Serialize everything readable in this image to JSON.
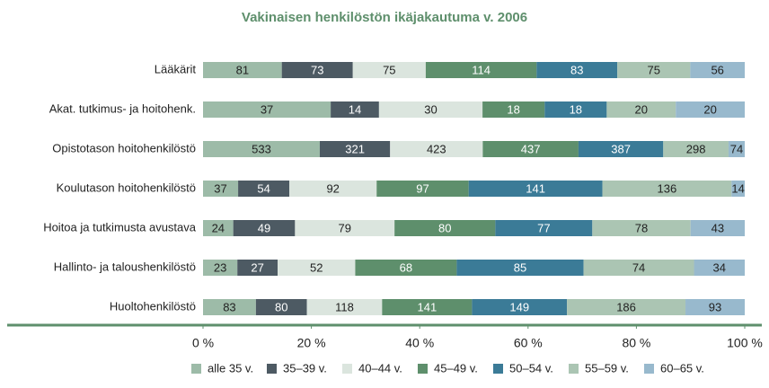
{
  "chart_data": {
    "type": "bar",
    "orientation": "horizontal",
    "stacked": "percent",
    "title": "Vakinaisen henkilöstön ikäjakautuma v. 2006",
    "categories": [
      "Lääkärit",
      "Akat. tutkimus- ja hoitohenk.",
      "Opistotason hoitohenkilöstö",
      "Koulutason hoitohenkilöstö",
      "Hoitoa ja tutkimusta avustava",
      "Hallinto- ja taloushenkilöstö",
      "Huoltohenkilöstö"
    ],
    "series": [
      {
        "name": "alle 35 v.",
        "color": "#9dbba8",
        "values": [
          81,
          37,
          533,
          37,
          24,
          23,
          83
        ]
      },
      {
        "name": "35–39 v.",
        "color": "#4d5a63",
        "values": [
          73,
          14,
          321,
          54,
          49,
          27,
          80
        ]
      },
      {
        "name": "40–44 v.",
        "color": "#dbe5de",
        "values": [
          75,
          30,
          423,
          92,
          79,
          52,
          118
        ]
      },
      {
        "name": "45–49 v.",
        "color": "#5e8f6c",
        "values": [
          114,
          18,
          437,
          97,
          80,
          68,
          141
        ]
      },
      {
        "name": "50–54 v.",
        "color": "#3b7b97",
        "values": [
          83,
          18,
          387,
          141,
          77,
          85,
          149
        ]
      },
      {
        "name": "55–59 v.",
        "color": "#abc5b3",
        "values": [
          75,
          20,
          298,
          136,
          78,
          74,
          186
        ]
      },
      {
        "name": "60–65 v.",
        "color": "#98b9cd",
        "values": [
          56,
          20,
          74,
          14,
          43,
          34,
          93
        ]
      }
    ],
    "xlim": [
      0,
      100
    ],
    "xticks": [
      {
        "value": 0,
        "label": "0 %"
      },
      {
        "value": 20,
        "label": "20 %"
      },
      {
        "value": 40,
        "label": "40 %"
      },
      {
        "value": 60,
        "label": "60 %"
      },
      {
        "value": 80,
        "label": "80 %"
      },
      {
        "value": 100,
        "label": "100 %"
      }
    ],
    "legend": "bottom"
  }
}
